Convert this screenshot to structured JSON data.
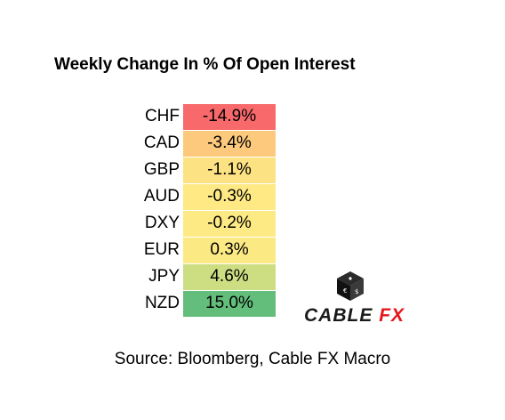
{
  "title": "Weekly Change In % Of Open Interest",
  "source": "Source: Bloomberg, Cable FX Macro",
  "logo": {
    "word1": "CABLE",
    "word2": "FX",
    "icon": "dice-cube-icon",
    "word2_color": "#e4161b"
  },
  "chart_data": {
    "type": "table",
    "title": "Weekly Change In % Of Open Interest",
    "rows": [
      {
        "currency": "CHF",
        "value": -14.9,
        "label": "-14.9%",
        "color": "#f8696b"
      },
      {
        "currency": "CAD",
        "value": -3.4,
        "label": "-3.4%",
        "color": "#fcc97d"
      },
      {
        "currency": "GBP",
        "value": -1.1,
        "label": "-1.1%",
        "color": "#fde283"
      },
      {
        "currency": "AUD",
        "value": -0.3,
        "label": "-0.3%",
        "color": "#fee984"
      },
      {
        "currency": "DXY",
        "value": -0.2,
        "label": "-0.2%",
        "color": "#feea84"
      },
      {
        "currency": "EUR",
        "value": 0.3,
        "label": "0.3%",
        "color": "#fbea84"
      },
      {
        "currency": "JPY",
        "value": 4.6,
        "label": "4.6%",
        "color": "#cddd82"
      },
      {
        "currency": "NZD",
        "value": 15.0,
        "label": "15.0%",
        "color": "#63be7b"
      }
    ]
  }
}
